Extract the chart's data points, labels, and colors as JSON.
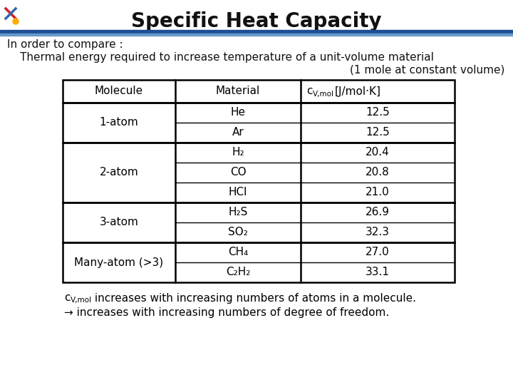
{
  "title": "Specific Heat Capacity",
  "subtitle1": "In order to compare :",
  "subtitle2": "Thermal energy required to increase temperature of a unit-volume material",
  "subtitle3": "(1 mole at constant volume)",
  "bg_color": "#FFFFFF",
  "title_color": "#111111",
  "col_header": [
    "Molecule",
    "Material",
    "c"
  ],
  "col_header_sub": "V,mol",
  "col_header_rest": " [J/mol·K]",
  "molecule_groups": [
    {
      "label": "1-atom",
      "rows": [
        [
          "He",
          "12.5"
        ],
        [
          "Ar",
          "12.5"
        ]
      ]
    },
    {
      "label": "2-atom",
      "rows": [
        [
          "H₂",
          "20.4"
        ],
        [
          "CO",
          "20.8"
        ],
        [
          "HCl",
          "21.0"
        ]
      ]
    },
    {
      "label": "3-atom",
      "rows": [
        [
          "H₂S",
          "26.9"
        ],
        [
          "SO₂",
          "32.3"
        ]
      ]
    },
    {
      "label": "Many-atom (>3)",
      "rows": [
        [
          "CH₄",
          "27.0"
        ],
        [
          "C₂H₂",
          "33.1"
        ]
      ]
    }
  ],
  "footer1_text": " increases with increasing numbers of atoms in a molecule.",
  "footer2": "→ increases with increasing numbers of degree of freedom.",
  "bar_dark": "#1F4E96",
  "bar_light": "#6699CC"
}
